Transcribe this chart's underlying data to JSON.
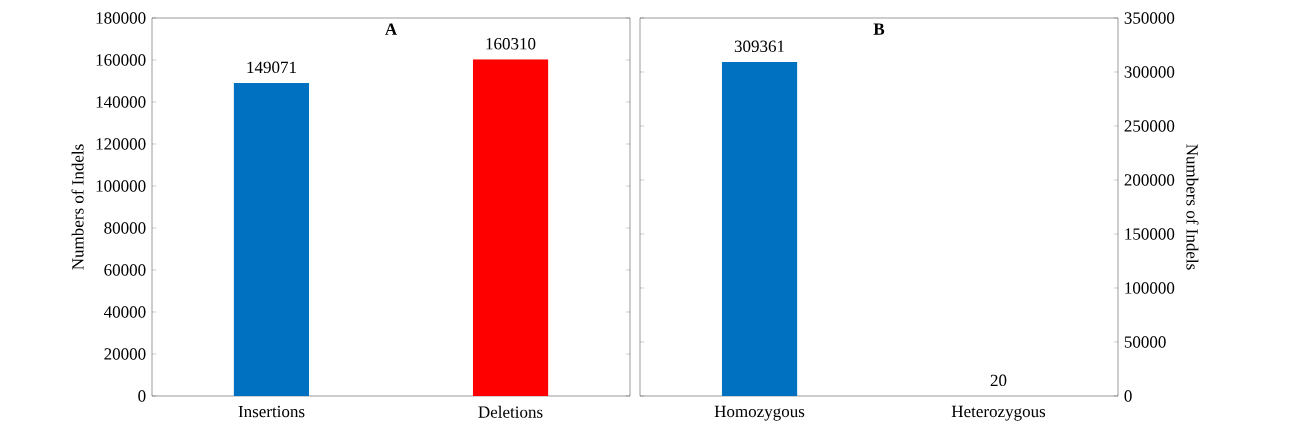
{
  "chart_data": [
    {
      "type": "bar",
      "title": "A",
      "ylabel": "Numbers of Indels",
      "categories": [
        "Insertions",
        "Deletions"
      ],
      "values": [
        149071,
        160310
      ],
      "colors": [
        "#0070c0",
        "#ff0000"
      ],
      "ylim": [
        0,
        180000
      ],
      "yticks": [
        0,
        20000,
        40000,
        60000,
        80000,
        100000,
        120000,
        140000,
        160000,
        180000
      ],
      "data_labels": true
    },
    {
      "type": "bar",
      "title": "B",
      "ylabel": "Numbers of Indels",
      "categories": [
        "Homozygous",
        "Heterozygous"
      ],
      "values": [
        309361,
        20
      ],
      "colors": [
        "#0070c0",
        "#ff0000"
      ],
      "ylim": [
        0,
        350000
      ],
      "yticks": [
        0,
        50000,
        100000,
        150000,
        200000,
        250000,
        300000,
        350000
      ],
      "data_labels": true
    }
  ]
}
